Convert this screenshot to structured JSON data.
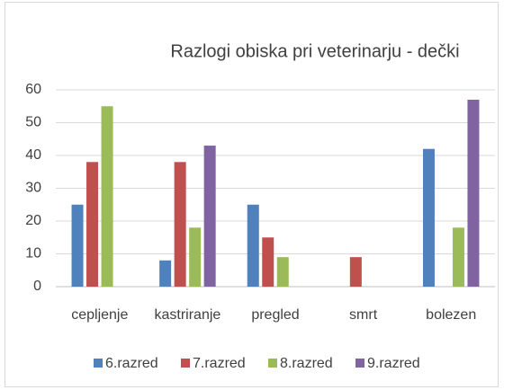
{
  "chart_data": {
    "type": "bar",
    "title": "Razlogi obiska pri veterinarju - dečki",
    "categories": [
      "cepljenje",
      "kastriranje",
      "pregled",
      "smrt",
      "bolezen"
    ],
    "series": [
      {
        "name": "6.razred",
        "color": "#4f81bd",
        "values": [
          25,
          8,
          25,
          0,
          42
        ]
      },
      {
        "name": "7.razred",
        "color": "#c0504d",
        "values": [
          38,
          38,
          15,
          9,
          0
        ]
      },
      {
        "name": "8.razred",
        "color": "#9bbb59",
        "values": [
          55,
          18,
          9,
          0,
          18
        ]
      },
      {
        "name": "9.razred",
        "color": "#8064a2",
        "values": [
          0,
          43,
          0,
          0,
          57
        ]
      }
    ],
    "ylim": [
      0,
      60
    ],
    "yticks": [
      0,
      10,
      20,
      30,
      40,
      50,
      60
    ],
    "grid": true,
    "legend": "bottom"
  }
}
